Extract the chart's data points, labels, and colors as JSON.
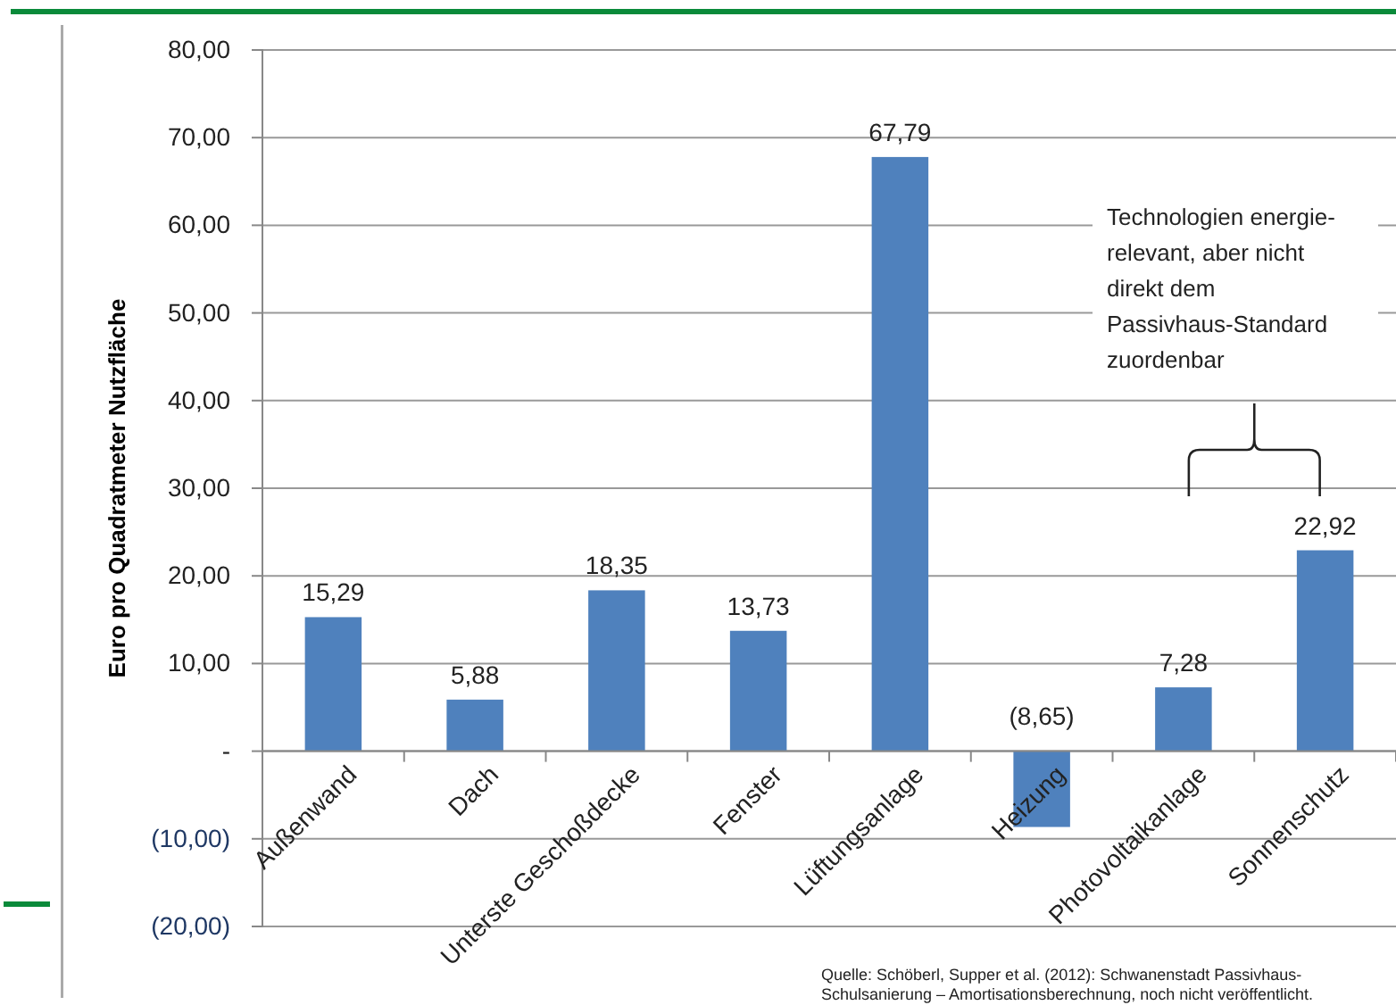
{
  "chart_data": {
    "type": "bar",
    "ylabel": "Euro pro Quadratmeter Nutzfläche",
    "categories": [
      "Außenwand",
      "Dach",
      "Unterste Geschoßdecke",
      "Fenster",
      "Lüftungsanlage",
      "Heizung",
      "Photovoltaikanlage",
      "Sonnenschutz"
    ],
    "values": [
      15.29,
      5.88,
      18.35,
      13.73,
      67.79,
      -8.65,
      7.28,
      22.92
    ],
    "value_labels": [
      "15,29",
      "5,88",
      "18,35",
      "13,73",
      "67,79",
      "(8,65)",
      "7,28",
      "22,92"
    ],
    "color": "#4f81bd",
    "ylim": [
      -20,
      80
    ],
    "yticks": [
      {
        "value": -20,
        "label": "(20,00)"
      },
      {
        "value": -10,
        "label": "(10,00)"
      },
      {
        "value": 0,
        "label": "-"
      },
      {
        "value": 10,
        "label": "10,00"
      },
      {
        "value": 20,
        "label": "20,00"
      },
      {
        "value": 30,
        "label": "30,00"
      },
      {
        "value": 40,
        "label": "40,00"
      },
      {
        "value": 50,
        "label": "50,00"
      },
      {
        "value": 60,
        "label": "60,00"
      },
      {
        "value": 70,
        "label": "70,00"
      },
      {
        "value": 80,
        "label": "80,00"
      }
    ],
    "grid": "y",
    "annotations": [
      "Technologien energie-\nrelevant, aber nicht\ndirekt dem\nPassivhaus-Standard\nzuordenbar",
      "Quelle: Schöberl, Supper et al. (2012): Schwanenstadt Passivhaus-\nSchulsanierung – Amortisationsberechnung, noch nicht veröffentlicht."
    ]
  }
}
